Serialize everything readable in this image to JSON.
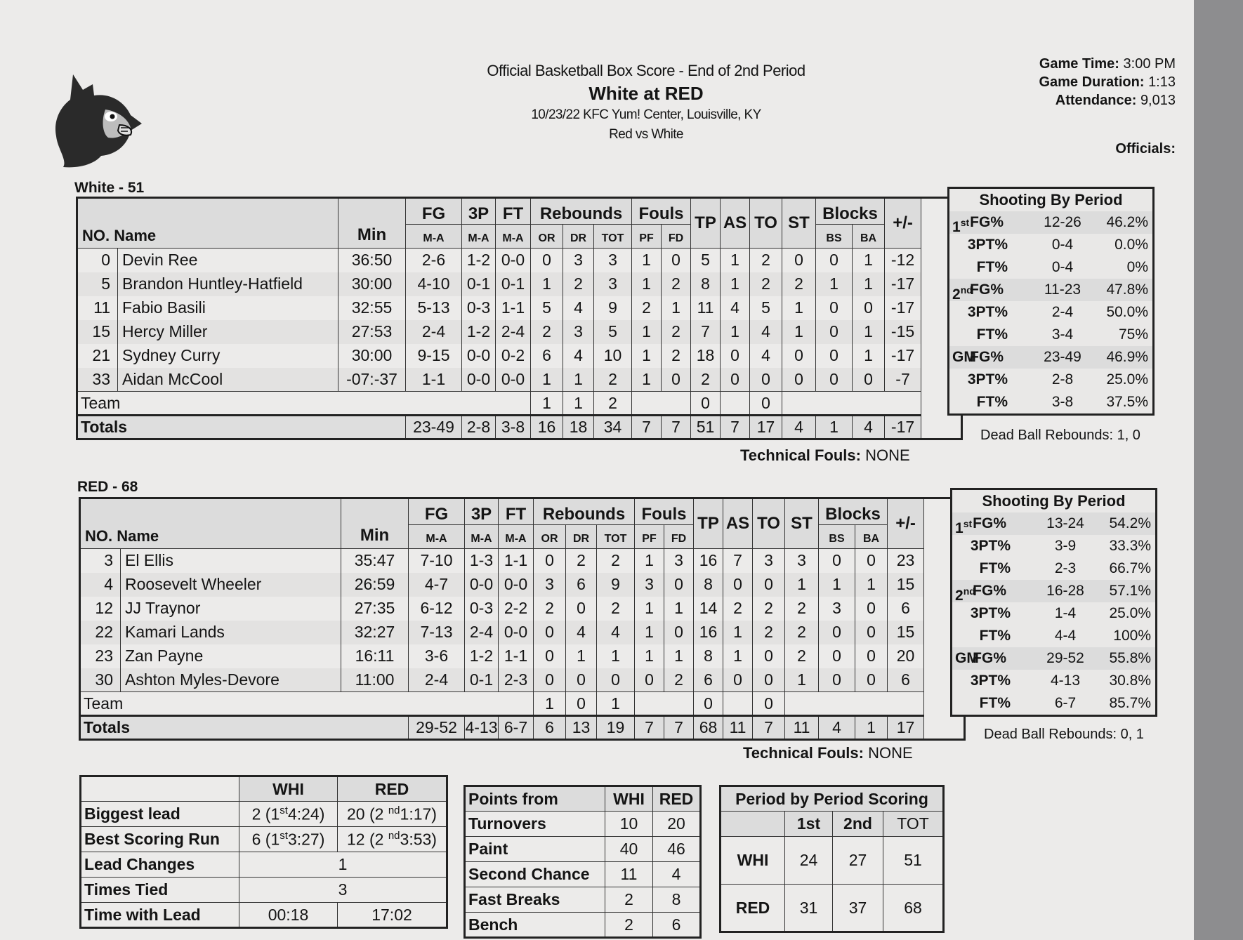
{
  "header": {
    "subtitle": "Official Basketball Box Score - End of 2nd Period",
    "title": "White at RED",
    "venue_line": "10/23/22 KFC Yum! Center, Louisville, KY",
    "matchup": "Red vs White"
  },
  "game_info": {
    "time_label": "Game Time:",
    "time_value": "3:00 PM",
    "duration_label": "Game Duration:",
    "duration_value": "1:13",
    "attendance_label": "Attendance:",
    "attendance_value": "9,013",
    "officials_label": "Officials:"
  },
  "logo": {
    "icon": "cardinal-bird-icon"
  },
  "columns": {
    "no": "NO.",
    "name": "Name",
    "min": "Min",
    "fg": "FG",
    "tp3": "3P",
    "ft": "FT",
    "ma": "M-A",
    "reb": "Rebounds",
    "or": "OR",
    "dr": "DR",
    "tot": "TOT",
    "fouls": "Fouls",
    "pf": "PF",
    "fd": "FD",
    "tp": "TP",
    "as": "AS",
    "to": "TO",
    "st": "ST",
    "blocks": "Blocks",
    "bs": "BS",
    "ba": "BA",
    "pm": "+/-",
    "team": "Team",
    "totals": "Totals"
  },
  "teams": [
    {
      "label": "White - 51",
      "players": [
        {
          "no": "0",
          "name": "Devin Ree",
          "min": "36:50",
          "fg": "2-6",
          "tp3": "1-2",
          "ft": "0-0",
          "or": "0",
          "dr": "3",
          "tot": "3",
          "pf": "1",
          "fd": "0",
          "tp": "5",
          "as": "1",
          "to": "2",
          "st": "0",
          "bs": "0",
          "ba": "1",
          "pm": "-12"
        },
        {
          "no": "5",
          "name": "Brandon Huntley-Hatfield",
          "min": "30:00",
          "fg": "4-10",
          "tp3": "0-1",
          "ft": "0-1",
          "or": "1",
          "dr": "2",
          "tot": "3",
          "pf": "1",
          "fd": "2",
          "tp": "8",
          "as": "1",
          "to": "2",
          "st": "2",
          "bs": "1",
          "ba": "1",
          "pm": "-17"
        },
        {
          "no": "11",
          "name": "Fabio Basili",
          "min": "32:55",
          "fg": "5-13",
          "tp3": "0-3",
          "ft": "1-1",
          "or": "5",
          "dr": "4",
          "tot": "9",
          "pf": "2",
          "fd": "1",
          "tp": "11",
          "as": "4",
          "to": "5",
          "st": "1",
          "bs": "0",
          "ba": "0",
          "pm": "-17"
        },
        {
          "no": "15",
          "name": "Hercy Miller",
          "min": "27:53",
          "fg": "2-4",
          "tp3": "1-2",
          "ft": "2-4",
          "or": "2",
          "dr": "3",
          "tot": "5",
          "pf": "1",
          "fd": "2",
          "tp": "7",
          "as": "1",
          "to": "4",
          "st": "1",
          "bs": "0",
          "ba": "1",
          "pm": "-15"
        },
        {
          "no": "21",
          "name": "Sydney Curry",
          "min": "30:00",
          "fg": "9-15",
          "tp3": "0-0",
          "ft": "0-2",
          "or": "6",
          "dr": "4",
          "tot": "10",
          "pf": "1",
          "fd": "2",
          "tp": "18",
          "as": "0",
          "to": "4",
          "st": "0",
          "bs": "0",
          "ba": "1",
          "pm": "-17"
        },
        {
          "no": "33",
          "name": "Aidan McCool",
          "min": "-07:-37",
          "fg": "1-1",
          "tp3": "0-0",
          "ft": "0-0",
          "or": "1",
          "dr": "1",
          "tot": "2",
          "pf": "1",
          "fd": "0",
          "tp": "2",
          "as": "0",
          "to": "0",
          "st": "0",
          "bs": "0",
          "ba": "0",
          "pm": "-7"
        }
      ],
      "team_row": {
        "or": "1",
        "dr": "1",
        "tot": "2",
        "tp": "0",
        "to": "0"
      },
      "totals": {
        "fg": "23-49",
        "tp3": "2-8",
        "ft": "3-8",
        "or": "16",
        "dr": "18",
        "tot": "34",
        "pf": "7",
        "fd": "7",
        "tp": "51",
        "as": "7",
        "to": "17",
        "st": "4",
        "bs": "1",
        "ba": "4",
        "pm": "-17"
      },
      "tech_label": "Technical Fouls:",
      "tech_value": "NONE",
      "shooting": {
        "title": "Shooting By Period",
        "rows": [
          {
            "per": "1",
            "sup": "st",
            "lab": "FG%",
            "ma": "12-26",
            "pct": "46.2%"
          },
          {
            "per": "",
            "sup": "",
            "lab": "3PT%",
            "ma": "0-4",
            "pct": "0.0%"
          },
          {
            "per": "",
            "sup": "",
            "lab": "FT%",
            "ma": "0-4",
            "pct": "0%"
          },
          {
            "per": "2",
            "sup": "nd",
            "lab": "FG%",
            "ma": "11-23",
            "pct": "47.8%"
          },
          {
            "per": "",
            "sup": "",
            "lab": "3PT%",
            "ma": "2-4",
            "pct": "50.0%"
          },
          {
            "per": "",
            "sup": "",
            "lab": "FT%",
            "ma": "3-4",
            "pct": "75%"
          },
          {
            "per": "GM",
            "sup": "",
            "lab": "FG%",
            "ma": "23-49",
            "pct": "46.9%"
          },
          {
            "per": "",
            "sup": "",
            "lab": "3PT%",
            "ma": "2-8",
            "pct": "25.0%"
          },
          {
            "per": "",
            "sup": "",
            "lab": "FT%",
            "ma": "3-8",
            "pct": "37.5%"
          }
        ],
        "dead_ball": "Dead Ball Rebounds: 1, 0"
      }
    },
    {
      "label": "RED - 68",
      "players": [
        {
          "no": "3",
          "name": "El Ellis",
          "min": "35:47",
          "fg": "7-10",
          "tp3": "1-3",
          "ft": "1-1",
          "or": "0",
          "dr": "2",
          "tot": "2",
          "pf": "1",
          "fd": "3",
          "tp": "16",
          "as": "7",
          "to": "3",
          "st": "3",
          "bs": "0",
          "ba": "0",
          "pm": "23"
        },
        {
          "no": "4",
          "name": "Roosevelt Wheeler",
          "min": "26:59",
          "fg": "4-7",
          "tp3": "0-0",
          "ft": "0-0",
          "or": "3",
          "dr": "6",
          "tot": "9",
          "pf": "3",
          "fd": "0",
          "tp": "8",
          "as": "0",
          "to": "0",
          "st": "1",
          "bs": "1",
          "ba": "1",
          "pm": "15"
        },
        {
          "no": "12",
          "name": "JJ Traynor",
          "min": "27:35",
          "fg": "6-12",
          "tp3": "0-3",
          "ft": "2-2",
          "or": "2",
          "dr": "0",
          "tot": "2",
          "pf": "1",
          "fd": "1",
          "tp": "14",
          "as": "2",
          "to": "2",
          "st": "2",
          "bs": "3",
          "ba": "0",
          "pm": "6"
        },
        {
          "no": "22",
          "name": "Kamari Lands",
          "min": "32:27",
          "fg": "7-13",
          "tp3": "2-4",
          "ft": "0-0",
          "or": "0",
          "dr": "4",
          "tot": "4",
          "pf": "1",
          "fd": "0",
          "tp": "16",
          "as": "1",
          "to": "2",
          "st": "2",
          "bs": "0",
          "ba": "0",
          "pm": "15"
        },
        {
          "no": "23",
          "name": "Zan Payne",
          "min": "16:11",
          "fg": "3-6",
          "tp3": "1-2",
          "ft": "1-1",
          "or": "0",
          "dr": "1",
          "tot": "1",
          "pf": "1",
          "fd": "1",
          "tp": "8",
          "as": "1",
          "to": "0",
          "st": "2",
          "bs": "0",
          "ba": "0",
          "pm": "20"
        },
        {
          "no": "30",
          "name": "Ashton Myles-Devore",
          "min": "11:00",
          "fg": "2-4",
          "tp3": "0-1",
          "ft": "2-3",
          "or": "0",
          "dr": "0",
          "tot": "0",
          "pf": "0",
          "fd": "2",
          "tp": "6",
          "as": "0",
          "to": "0",
          "st": "1",
          "bs": "0",
          "ba": "0",
          "pm": "6"
        }
      ],
      "team_row": {
        "or": "1",
        "dr": "0",
        "tot": "1",
        "tp": "0",
        "to": "0"
      },
      "totals": {
        "fg": "29-52",
        "tp3": "4-13",
        "ft": "6-7",
        "or": "6",
        "dr": "13",
        "tot": "19",
        "pf": "7",
        "fd": "7",
        "tp": "68",
        "as": "11",
        "to": "7",
        "st": "11",
        "bs": "4",
        "ba": "1",
        "pm": "17"
      },
      "tech_label": "Technical Fouls:",
      "tech_value": "NONE",
      "shooting": {
        "title": "Shooting By Period",
        "rows": [
          {
            "per": "1",
            "sup": "st",
            "lab": "FG%",
            "ma": "13-24",
            "pct": "54.2%"
          },
          {
            "per": "",
            "sup": "",
            "lab": "3PT%",
            "ma": "3-9",
            "pct": "33.3%"
          },
          {
            "per": "",
            "sup": "",
            "lab": "FT%",
            "ma": "2-3",
            "pct": "66.7%"
          },
          {
            "per": "2",
            "sup": "nd",
            "lab": "FG%",
            "ma": "16-28",
            "pct": "57.1%"
          },
          {
            "per": "",
            "sup": "",
            "lab": "3PT%",
            "ma": "1-4",
            "pct": "25.0%"
          },
          {
            "per": "",
            "sup": "",
            "lab": "FT%",
            "ma": "4-4",
            "pct": "100%"
          },
          {
            "per": "GM",
            "sup": "",
            "lab": "FG%",
            "ma": "29-52",
            "pct": "55.8%"
          },
          {
            "per": "",
            "sup": "",
            "lab": "3PT%",
            "ma": "4-13",
            "pct": "30.8%"
          },
          {
            "per": "",
            "sup": "",
            "lab": "FT%",
            "ma": "6-7",
            "pct": "85.7%"
          }
        ],
        "dead_ball": "Dead Ball Rebounds: 0, 1"
      }
    }
  ],
  "lead_stats": {
    "headers": [
      "WHI",
      "RED"
    ],
    "rows": [
      {
        "label": "Biggest lead",
        "whi": "2 (1",
        "whi_sup": "st",
        "whi_rest": "4:24)",
        "red": "20 (2",
        "red_sup": "nd",
        "red_rest": "1:17)"
      },
      {
        "label": "Best Scoring Run",
        "whi": "6 (1",
        "whi_sup": "st",
        "whi_rest": "3:27)",
        "red": "12 (2",
        "red_sup": "nd",
        "red_rest": "3:53)"
      }
    ],
    "lead_changes_label": "Lead Changes",
    "lead_changes": "1",
    "times_tied_label": "Times Tied",
    "times_tied": "3",
    "time_lead_label": "Time with Lead",
    "time_lead_whi": "00:18",
    "time_lead_red": "17:02"
  },
  "points_from": {
    "header": "Points from",
    "whi": "WHI",
    "red": "RED",
    "rows": [
      {
        "label": "Turnovers",
        "whi": "10",
        "red": "20"
      },
      {
        "label": "Paint",
        "whi": "40",
        "red": "46"
      },
      {
        "label": "Second Chance",
        "whi": "11",
        "red": "4"
      },
      {
        "label": "Fast Breaks",
        "whi": "2",
        "red": "8"
      },
      {
        "label": "Bench",
        "whi": "2",
        "red": "6"
      }
    ]
  },
  "period_scoring": {
    "title": "Period by Period Scoring",
    "headers": [
      "1st",
      "2nd",
      "TOT"
    ],
    "rows": [
      {
        "team": "WHI",
        "p1": "24",
        "p2": "27",
        "tot": "51"
      },
      {
        "team": "RED",
        "p1": "31",
        "p2": "37",
        "tot": "68"
      }
    ]
  }
}
